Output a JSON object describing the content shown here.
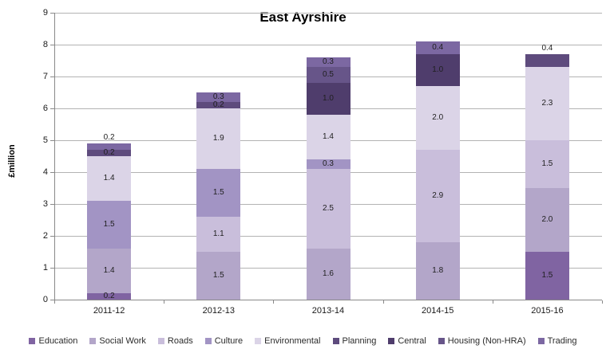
{
  "title": "East Ayrshire",
  "chart_data": {
    "type": "bar",
    "stacked": true,
    "title": "East Ayrshire",
    "xlabel": "",
    "ylabel": "£million",
    "ylim": [
      0,
      9
    ],
    "y_ticks": [
      0,
      1,
      2,
      3,
      4,
      5,
      6,
      7,
      8,
      9
    ],
    "grid": "horizontal-major",
    "legend_position": "bottom",
    "categories": [
      "2011-12",
      "2012-13",
      "2013-14",
      "2014-15",
      "2015-16"
    ],
    "series": [
      {
        "name": "Education",
        "color": "#8064A2",
        "values": [
          0.2,
          0,
          0,
          0,
          1.5
        ]
      },
      {
        "name": "Social Work",
        "color": "#B3A6C9",
        "values": [
          1.4,
          1.5,
          1.6,
          1.8,
          2.0
        ]
      },
      {
        "name": "Roads",
        "color": "#C9BEDB",
        "values": [
          0,
          1.1,
          2.5,
          2.9,
          1.5
        ]
      },
      {
        "name": "Culture",
        "color": "#A294C4",
        "values": [
          1.5,
          1.5,
          0.3,
          0,
          0
        ]
      },
      {
        "name": "Environmental",
        "color": "#DBD4E7",
        "values": [
          1.4,
          1.9,
          1.4,
          2.0,
          2.3
        ]
      },
      {
        "name": "Planning",
        "color": "#5E4B7D",
        "values": [
          0.2,
          0.2,
          0,
          0,
          0.4
        ]
      },
      {
        "name": "Central",
        "color": "#4F3D6C",
        "values": [
          0,
          0,
          1.0,
          1.0,
          0
        ]
      },
      {
        "name": "Housing (Non-HRA)",
        "color": "#675589",
        "values": [
          0,
          0,
          0.5,
          0,
          0
        ]
      },
      {
        "name": "Trading",
        "color": "#7C68A2",
        "values": [
          0.2,
          0.3,
          0.3,
          0.4,
          0
        ]
      }
    ],
    "labels_above_bar": [
      {
        "category_index": 0,
        "series": "Trading"
      },
      {
        "category_index": 4,
        "series": "Planning"
      }
    ]
  }
}
